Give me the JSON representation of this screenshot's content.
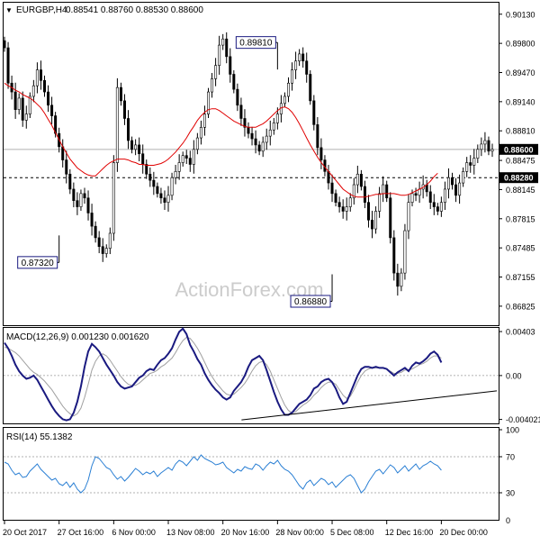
{
  "header": {
    "arrow_glyph": "▼",
    "symbol": "EURGBP,H4",
    "ohlc": "0.88541 0.88760 0.88530 0.88600"
  },
  "watermark": "ActionForex.com",
  "colors": {
    "candle": "#000000",
    "ma": "#e00000",
    "macd_line": "#1a1a80",
    "macd_signal": "#a0a0a0",
    "rsi": "#2a7fd4",
    "current_price_line": "#b0b0b0",
    "dashed_level": "#000000",
    "trendline": "#000000",
    "price_badge": "#000000",
    "watermark": "#cccccc"
  },
  "chart_data": [
    {
      "type": "candlestick",
      "name": "price",
      "ylim": [
        0.8662,
        0.9025
      ],
      "y_ticks": [
        "0.90130",
        "0.89800",
        "0.89470",
        "0.89140",
        "0.88810",
        "0.88475",
        "0.88145",
        "0.87815",
        "0.87485",
        "0.87155",
        "0.86825"
      ],
      "current_price": "0.88600",
      "dashed_level": "0.88280",
      "annotations": [
        {
          "label": "0.89810",
          "value": 0.8981,
          "date": "28 Nov 00:00"
        },
        {
          "label": "0.87320",
          "value": 0.8732,
          "date": "27 Oct 16:00"
        },
        {
          "label": "0.86880",
          "value": 0.8688,
          "date": "5 Dec 08:00"
        }
      ],
      "closes": [
        0.8975,
        0.8935,
        0.8925,
        0.8905,
        0.8918,
        0.8893,
        0.89,
        0.892,
        0.8932,
        0.895,
        0.8938,
        0.8925,
        0.891,
        0.8898,
        0.8878,
        0.8863,
        0.8848,
        0.8832,
        0.8815,
        0.8802,
        0.8795,
        0.881,
        0.8805,
        0.8788,
        0.8773,
        0.876,
        0.875,
        0.8742,
        0.8748,
        0.8765,
        0.8845,
        0.893,
        0.8915,
        0.8895,
        0.887,
        0.886,
        0.8865,
        0.8855,
        0.8843,
        0.8832,
        0.8825,
        0.8818,
        0.881,
        0.8805,
        0.88,
        0.8808,
        0.8828,
        0.8835,
        0.8845,
        0.8853,
        0.885,
        0.8843,
        0.886,
        0.8873,
        0.8885,
        0.89,
        0.8925,
        0.894,
        0.8955,
        0.8978,
        0.8985,
        0.8965,
        0.8945,
        0.8928,
        0.891,
        0.8895,
        0.8885,
        0.8878,
        0.8872,
        0.8865,
        0.8858,
        0.8868,
        0.8875,
        0.8882,
        0.889,
        0.89,
        0.8912,
        0.892,
        0.8935,
        0.895,
        0.896,
        0.8968,
        0.896,
        0.8945,
        0.8915,
        0.8888,
        0.8862,
        0.8848,
        0.8835,
        0.8822,
        0.881,
        0.88,
        0.8795,
        0.879,
        0.8795,
        0.8805,
        0.882,
        0.8832,
        0.8818,
        0.88,
        0.878,
        0.877,
        0.879,
        0.881,
        0.882,
        0.8805,
        0.876,
        0.872,
        0.8705,
        0.872,
        0.8768,
        0.88,
        0.881,
        0.8808,
        0.8815,
        0.882,
        0.8812,
        0.88,
        0.8795,
        0.879,
        0.88,
        0.8815,
        0.8828,
        0.882,
        0.8808,
        0.8822,
        0.8835,
        0.8845,
        0.8842,
        0.885,
        0.886,
        0.8866,
        0.887,
        0.8858,
        0.886
      ],
      "ma": [
        0.8935,
        0.8932,
        0.893,
        0.8927,
        0.8925,
        0.8922,
        0.892,
        0.8918,
        0.8915,
        0.8911,
        0.8907,
        0.8901,
        0.8894,
        0.8887,
        0.8879,
        0.8871,
        0.8863,
        0.8856,
        0.8849,
        0.8844,
        0.8839,
        0.8836,
        0.8833,
        0.8831,
        0.883,
        0.883,
        0.8834,
        0.8838,
        0.8842,
        0.8845,
        0.8847,
        0.8849,
        0.8849,
        0.8849,
        0.8848,
        0.8846,
        0.8845,
        0.8843,
        0.8843,
        0.8842,
        0.8842,
        0.8842,
        0.8843,
        0.8844,
        0.8846,
        0.8849,
        0.8853,
        0.8857,
        0.8862,
        0.8867,
        0.8873,
        0.888,
        0.8886,
        0.8893,
        0.8898,
        0.8902,
        0.8905,
        0.8906,
        0.8906,
        0.8904,
        0.8901,
        0.8898,
        0.8895,
        0.8892,
        0.889,
        0.8888,
        0.8886,
        0.8885,
        0.8885,
        0.8885,
        0.8887,
        0.8889,
        0.8892,
        0.8896,
        0.89,
        0.8904,
        0.8907,
        0.8908,
        0.8906,
        0.8902,
        0.8896,
        0.8889,
        0.8881,
        0.8873,
        0.8865,
        0.8858,
        0.8851,
        0.8845,
        0.884,
        0.8835,
        0.883,
        0.8825,
        0.882,
        0.8815,
        0.8812,
        0.8809,
        0.8807,
        0.8806,
        0.8806,
        0.8806,
        0.8807,
        0.8808,
        0.8809,
        0.8809,
        0.881,
        0.881,
        0.881,
        0.881,
        0.8809,
        0.8808,
        0.8808,
        0.8809,
        0.8811,
        0.8813,
        0.8815,
        0.8817,
        0.882,
        0.8824,
        0.8829,
        0.8833
      ]
    },
    {
      "type": "line",
      "name": "macd",
      "title": "MACD(12,26,9) 0.001230 0.001620",
      "ylim": [
        -0.0043,
        0.0042
      ],
      "y_ticks": [
        "0.00403",
        "0.00",
        "-0.004021"
      ],
      "macd": [
        0.003,
        0.0025,
        0.0018,
        0.001,
        0.0004,
        0.0,
        -0.0003,
        -0.0002,
        0.0,
        -0.0004,
        -0.001,
        -0.0016,
        -0.0022,
        -0.0028,
        -0.0033,
        -0.0037,
        -0.004,
        -0.0041,
        -0.004,
        -0.0034,
        -0.0024,
        -0.001,
        0.0008,
        0.0022,
        0.0029,
        0.0026,
        0.0022,
        0.0016,
        0.001,
        0.0005,
        0.0,
        -0.0006,
        -0.001,
        -0.0012,
        -0.0011,
        -0.001,
        -0.0006,
        -0.0002,
        0.0,
        0.0004,
        0.0006,
        0.0005,
        0.001,
        0.0014,
        0.0016,
        0.002,
        0.0025,
        0.0033,
        0.004,
        0.0043,
        0.0038,
        0.0028,
        0.0022,
        0.0015,
        0.001,
        0.0002,
        -0.0004,
        -0.0009,
        -0.0013,
        -0.0016,
        -0.002,
        -0.0022,
        -0.002,
        -0.0014,
        -0.001,
        -0.0006,
        0.0,
        0.0008,
        0.0014,
        0.0016,
        0.0018,
        0.0014,
        0.0005,
        -0.0005,
        -0.0015,
        -0.0024,
        -0.0031,
        -0.0036,
        -0.0036,
        -0.0034,
        -0.003,
        -0.0026,
        -0.0024,
        -0.0022,
        -0.0018,
        -0.0012,
        -0.001,
        -0.0006,
        -0.0004,
        -0.0003,
        -0.0006,
        -0.0012,
        -0.002,
        -0.0026,
        -0.0024,
        -0.0016,
        -0.0008,
        0.0,
        0.0006,
        0.0008,
        0.0008,
        0.0007,
        0.0008,
        0.0007,
        0.0007,
        0.0006,
        0.0003,
        0.0,
        0.0003,
        0.0005,
        0.0007,
        0.0004,
        0.0009,
        0.0012,
        0.0011,
        0.0013,
        0.0016,
        0.002,
        0.0022,
        0.0019,
        0.0012
      ],
      "signal": [
        0.0026,
        0.0025,
        0.0023,
        0.0021,
        0.0018,
        0.0014,
        0.001,
        0.0006,
        0.0003,
        0.0001,
        -0.0002,
        -0.0005,
        -0.0009,
        -0.0013,
        -0.0018,
        -0.0023,
        -0.0028,
        -0.0032,
        -0.0035,
        -0.0037,
        -0.0035,
        -0.003,
        -0.002,
        -0.0008,
        0.0005,
        0.0013,
        0.0018,
        0.002,
        0.0018,
        0.0014,
        0.0009,
        0.0004,
        -0.0001,
        -0.0005,
        -0.0008,
        -0.0009,
        -0.0009,
        -0.0007,
        -0.0004,
        -0.0001,
        0.0002,
        0.0003,
        0.0005,
        0.0008,
        0.001,
        0.0013,
        0.0016,
        0.0021,
        0.0027,
        0.0032,
        0.0035,
        0.0034,
        0.003,
        0.0025,
        0.0019,
        0.0012,
        0.0005,
        -0.0001,
        -0.0006,
        -0.001,
        -0.0014,
        -0.0017,
        -0.0018,
        -0.0017,
        -0.0014,
        -0.0011,
        -0.0007,
        -0.0002,
        0.0004,
        0.0009,
        0.0012,
        0.0013,
        0.001,
        0.0004,
        -0.0004,
        -0.0012,
        -0.002,
        -0.0027,
        -0.0032,
        -0.0034,
        -0.0033,
        -0.003,
        -0.0027,
        -0.0025,
        -0.0022,
        -0.0018,
        -0.0015,
        -0.0011,
        -0.0008,
        -0.0006,
        -0.0006,
        -0.0008,
        -0.0013,
        -0.0018,
        -0.0021,
        -0.0019,
        -0.0013,
        -0.0006,
        0.0,
        0.0004,
        0.0006,
        0.0007,
        0.0007,
        0.0007,
        0.0007,
        0.0006,
        0.0004,
        0.0002,
        0.0002,
        0.0003,
        0.0005,
        0.0005,
        0.0006,
        0.0008,
        0.001,
        0.0011,
        0.0013,
        0.0016,
        0.0018,
        0.0018,
        0.0016
      ],
      "trendline": [
        {
          "date": "28 Nov 00:00",
          "value": -0.0039
        },
        {
          "date": "20 Dec 00:00",
          "value": -0.0014
        }
      ]
    },
    {
      "type": "line",
      "name": "rsi",
      "title": "RSI(14) 55.1382",
      "ylim": [
        0,
        100
      ],
      "y_ticks": [
        "100",
        "70",
        "30",
        "0"
      ],
      "levels": [
        70,
        30
      ],
      "values": [
        64,
        62,
        55,
        50,
        52,
        47,
        48,
        54,
        58,
        62,
        56,
        52,
        48,
        44,
        46,
        40,
        38,
        42,
        36,
        41,
        34,
        30,
        34,
        44,
        60,
        70,
        68,
        63,
        58,
        56,
        50,
        45,
        48,
        43,
        47,
        52,
        57,
        54,
        50,
        53,
        51,
        54,
        48,
        52,
        55,
        58,
        55,
        62,
        66,
        64,
        60,
        65,
        70,
        66,
        72,
        68,
        66,
        64,
        61,
        62,
        64,
        58,
        55,
        52,
        56,
        54,
        59,
        57,
        56,
        62,
        60,
        55,
        60,
        64,
        62,
        66,
        60,
        56,
        54,
        50,
        44,
        38,
        34,
        41,
        44,
        38,
        42,
        46,
        44,
        39,
        42,
        36,
        40,
        44,
        48,
        50,
        46,
        38,
        30,
        34,
        42,
        48,
        54,
        56,
        51,
        56,
        61,
        58,
        52,
        56,
        60,
        54,
        58,
        62,
        56,
        60,
        62,
        65,
        62,
        60,
        55
      ],
      "current": 55.1382
    }
  ],
  "x_labels": [
    "20 Oct 2017",
    "27 Oct 16:00",
    "6 Nov 00:00",
    "13 Nov 08:00",
    "20 Nov 16:00",
    "28 Nov 00:00",
    "5 Dec 08:00",
    "12 Dec 16:00",
    "20 Dec 00:00"
  ]
}
